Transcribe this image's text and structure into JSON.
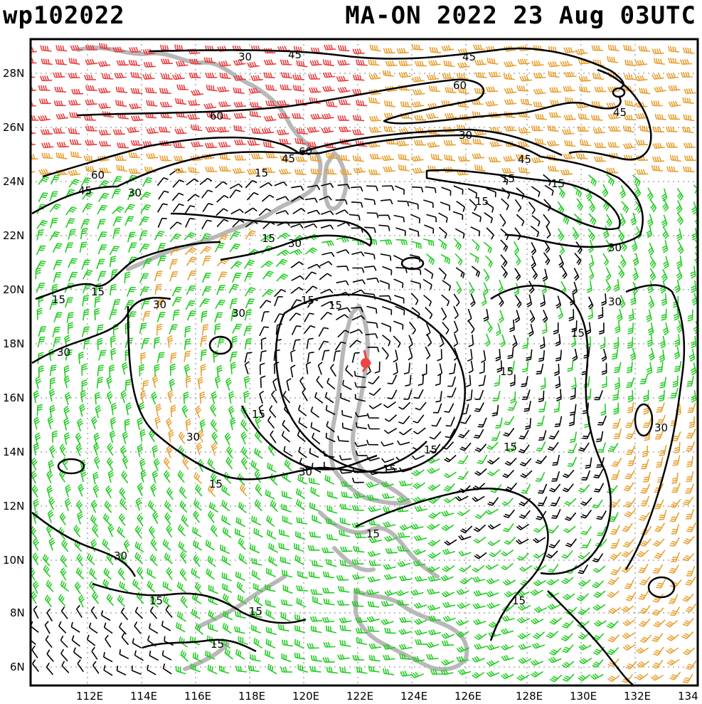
{
  "header": {
    "storm_id": "wp102022",
    "storm_info": "MA-ON 2022 23 Aug 03UTC"
  },
  "axes": {
    "lon_labels": [
      "112E",
      "114E",
      "116E",
      "118E",
      "120E",
      "122E",
      "124E",
      "126E",
      "128E",
      "130E",
      "132E",
      "134"
    ],
    "lat_labels": [
      "28N",
      "26N",
      "24N",
      "22N",
      "20N",
      "18N",
      "16N",
      "14N",
      "12N",
      "10N",
      "8N",
      "6N"
    ]
  },
  "contour_labels": {
    "c15": "15",
    "c30": "30",
    "c45": "45",
    "c60": "60"
  },
  "colors": {
    "calm_barb": "#000000",
    "green_barb": "#22cc22",
    "orange_barb": "#e8a030",
    "red_barb": "#e84040",
    "coastline": "#b8b8b8",
    "grid": "#aaaaaa",
    "storm_center": "#ee4444"
  },
  "storm_center": {
    "lon": 122.2,
    "lat": 17.3
  }
}
